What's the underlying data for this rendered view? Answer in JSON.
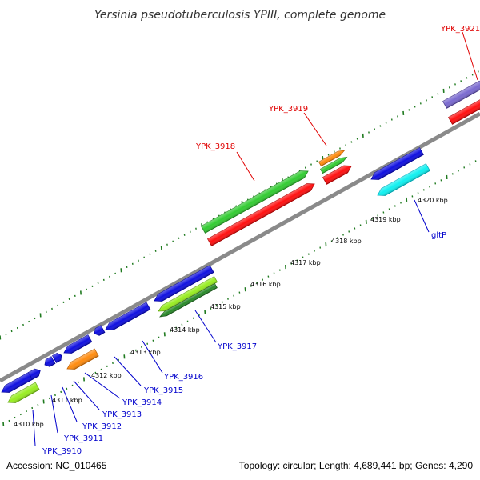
{
  "title": "Yersinia pseudotuberculosis YPIII, complete genome",
  "footer": {
    "accession": "Accession: NC_010465",
    "summary": "Topology: circular; Length: 4,689,441 bp; Genes: 4,290"
  },
  "colors": {
    "backbone": "#8a8a8a",
    "tick": "#1f7a1f",
    "label_forward": "#e00000",
    "label_reverse": "#0000cc",
    "connector_forward": "#e00000",
    "connector_reverse": "#0000cc"
  },
  "kbp_labels": [
    "4310 kbp",
    "4311 kbp",
    "4312 kbp",
    "4313 kbp",
    "4314 kbp",
    "4315 kbp",
    "4316 kbp",
    "4317 kbp",
    "4318 kbp",
    "4319 kbp",
    "4320 kbp"
  ],
  "gene_labels": [
    {
      "text": "YPK_3910",
      "strand": "reverse"
    },
    {
      "text": "YPK_3911",
      "strand": "reverse"
    },
    {
      "text": "YPK_3912",
      "strand": "reverse"
    },
    {
      "text": "YPK_3913",
      "strand": "reverse"
    },
    {
      "text": "YPK_3914",
      "strand": "reverse"
    },
    {
      "text": "YPK_3915",
      "strand": "reverse"
    },
    {
      "text": "YPK_3916",
      "strand": "reverse"
    },
    {
      "text": "YPK_3917",
      "strand": "reverse"
    },
    {
      "text": "gltP",
      "strand": "reverse"
    },
    {
      "text": "YPK_3918",
      "strand": "forward"
    },
    {
      "text": "YPK_3919",
      "strand": "forward"
    },
    {
      "text": "YPK_3921",
      "strand": "forward"
    }
  ],
  "features": [
    {
      "name": "feature-blue-1",
      "color": "#1010e0",
      "shade": "#0000a0"
    },
    {
      "name": "feature-blue-2",
      "color": "#1010e0",
      "shade": "#0000a0"
    },
    {
      "name": "feature-blue-3",
      "color": "#1010e0",
      "shade": "#0000a0"
    },
    {
      "name": "feature-blue-4",
      "color": "#1010e0",
      "shade": "#0000a0"
    },
    {
      "name": "feature-blue-5",
      "color": "#1010e0",
      "shade": "#0000a0"
    },
    {
      "name": "feature-blue-6",
      "color": "#1010e0",
      "shade": "#0000a0"
    },
    {
      "name": "feature-blue-7",
      "color": "#1010e0",
      "shade": "#0000a0"
    },
    {
      "name": "feature-blue-8",
      "color": "#1010e0",
      "shade": "#0000a0"
    },
    {
      "name": "feature-blue-gltP",
      "color": "#1010e0",
      "shade": "#0000a0"
    },
    {
      "name": "feature-cyan-gltP",
      "color": "#10f0f0",
      "shade": "#00b0c0"
    },
    {
      "name": "feature-lime-1",
      "color": "#99ee22",
      "shade": "#66aa10"
    },
    {
      "name": "feature-orange-1",
      "color": "#ff8c10",
      "shade": "#c06000"
    },
    {
      "name": "feature-lime-2",
      "color": "#99ee22",
      "shade": "#66aa10"
    },
    {
      "name": "feature-green-dark",
      "color": "#2a8a2a",
      "shade": "#1a5a1a"
    },
    {
      "name": "feature-green-3918",
      "color": "#33cc33",
      "shade": "#208820"
    },
    {
      "name": "feature-red-3918",
      "color": "#ff1010",
      "shade": "#b00000"
    },
    {
      "name": "feature-orange-3919",
      "color": "#ff8c10",
      "shade": "#c06000"
    },
    {
      "name": "feature-green-3919",
      "color": "#33cc33",
      "shade": "#208820"
    },
    {
      "name": "feature-red-3919",
      "color": "#ff1010",
      "shade": "#b00000"
    },
    {
      "name": "feature-purple-3921",
      "color": "#7a6ad0",
      "shade": "#4a3a90"
    },
    {
      "name": "feature-red-3921",
      "color": "#ff1010",
      "shade": "#b00000"
    }
  ]
}
